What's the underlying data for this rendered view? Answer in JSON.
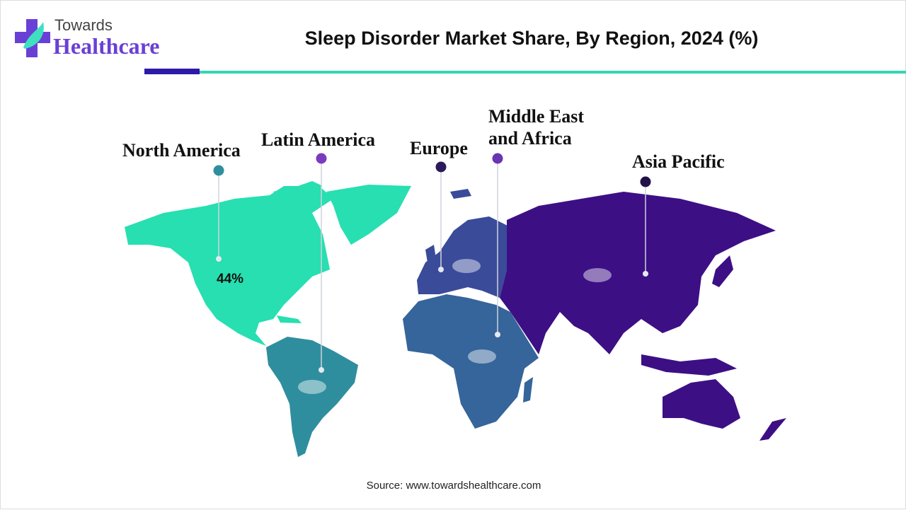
{
  "logo": {
    "line1": "Towards",
    "line2": "Healthcare"
  },
  "title": "Sleep Disorder Market Share, By Region, 2024 (%)",
  "colors": {
    "north_america": "#27dfb0",
    "latin_america": "#2f8e9e",
    "europe": "#3a4b9a",
    "middle_east_africa": "#35659a",
    "asia_pacific": "#3d0f85",
    "accent_dark": "#2d1aa8",
    "accent_teal": "#35d6b3"
  },
  "regions": [
    {
      "label": "North America",
      "value": "44%",
      "dot_color": "#2f8e9e"
    },
    {
      "label": "Latin America",
      "dot_color": "#7a3bbf"
    },
    {
      "label": "Europe",
      "dot_color": "#2b1a5c"
    },
    {
      "label": "Middle East and Africa",
      "label_line1": "Middle East",
      "label_line2": "and Africa",
      "dot_color": "#6a35b0"
    },
    {
      "label": "Asia Pacific",
      "dot_color": "#22104a"
    }
  ],
  "source": "Source: www.towardshealthcare.com"
}
